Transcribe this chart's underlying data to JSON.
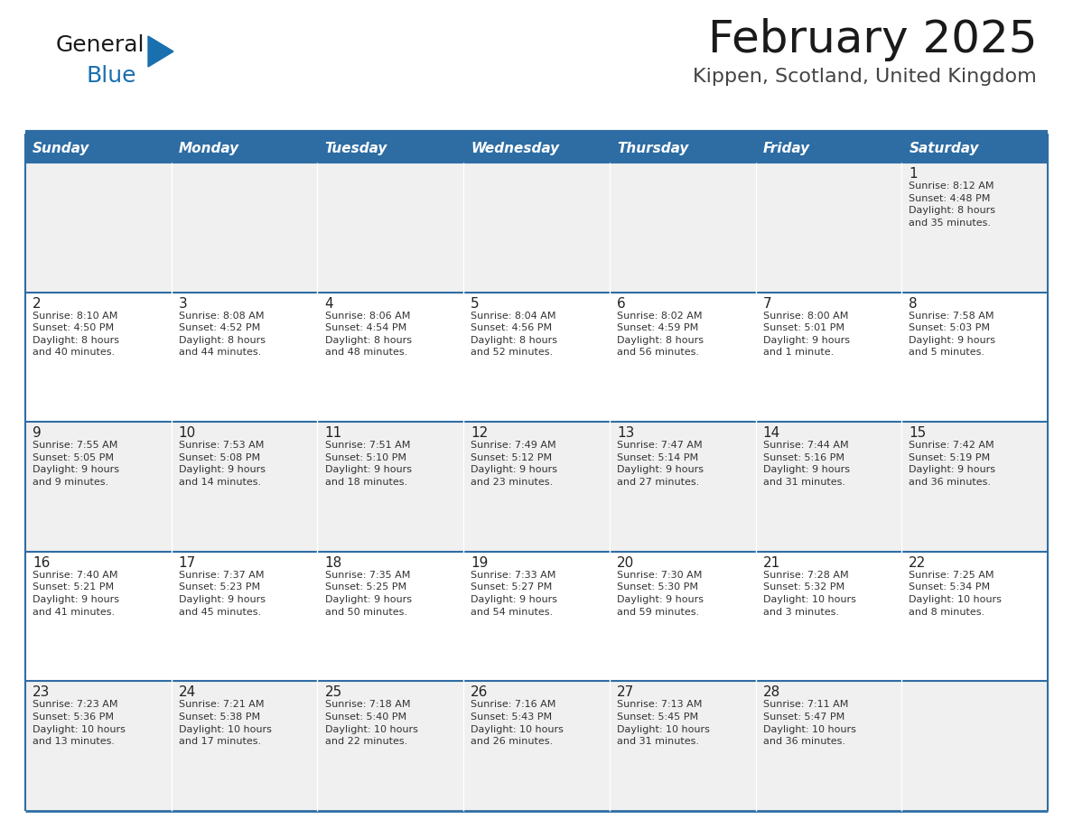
{
  "title": "February 2025",
  "subtitle": "Kippen, Scotland, United Kingdom",
  "header_bg": "#2E6DA4",
  "header_text_color": "#FFFFFF",
  "cell_bg_odd": "#F0F0F0",
  "cell_bg_even": "#FFFFFF",
  "day_names": [
    "Sunday",
    "Monday",
    "Tuesday",
    "Wednesday",
    "Thursday",
    "Friday",
    "Saturday"
  ],
  "weeks": [
    [
      {
        "day": "",
        "info": ""
      },
      {
        "day": "",
        "info": ""
      },
      {
        "day": "",
        "info": ""
      },
      {
        "day": "",
        "info": ""
      },
      {
        "day": "",
        "info": ""
      },
      {
        "day": "",
        "info": ""
      },
      {
        "day": "1",
        "info": "Sunrise: 8:12 AM\nSunset: 4:48 PM\nDaylight: 8 hours\nand 35 minutes."
      }
    ],
    [
      {
        "day": "2",
        "info": "Sunrise: 8:10 AM\nSunset: 4:50 PM\nDaylight: 8 hours\nand 40 minutes."
      },
      {
        "day": "3",
        "info": "Sunrise: 8:08 AM\nSunset: 4:52 PM\nDaylight: 8 hours\nand 44 minutes."
      },
      {
        "day": "4",
        "info": "Sunrise: 8:06 AM\nSunset: 4:54 PM\nDaylight: 8 hours\nand 48 minutes."
      },
      {
        "day": "5",
        "info": "Sunrise: 8:04 AM\nSunset: 4:56 PM\nDaylight: 8 hours\nand 52 minutes."
      },
      {
        "day": "6",
        "info": "Sunrise: 8:02 AM\nSunset: 4:59 PM\nDaylight: 8 hours\nand 56 minutes."
      },
      {
        "day": "7",
        "info": "Sunrise: 8:00 AM\nSunset: 5:01 PM\nDaylight: 9 hours\nand 1 minute."
      },
      {
        "day": "8",
        "info": "Sunrise: 7:58 AM\nSunset: 5:03 PM\nDaylight: 9 hours\nand 5 minutes."
      }
    ],
    [
      {
        "day": "9",
        "info": "Sunrise: 7:55 AM\nSunset: 5:05 PM\nDaylight: 9 hours\nand 9 minutes."
      },
      {
        "day": "10",
        "info": "Sunrise: 7:53 AM\nSunset: 5:08 PM\nDaylight: 9 hours\nand 14 minutes."
      },
      {
        "day": "11",
        "info": "Sunrise: 7:51 AM\nSunset: 5:10 PM\nDaylight: 9 hours\nand 18 minutes."
      },
      {
        "day": "12",
        "info": "Sunrise: 7:49 AM\nSunset: 5:12 PM\nDaylight: 9 hours\nand 23 minutes."
      },
      {
        "day": "13",
        "info": "Sunrise: 7:47 AM\nSunset: 5:14 PM\nDaylight: 9 hours\nand 27 minutes."
      },
      {
        "day": "14",
        "info": "Sunrise: 7:44 AM\nSunset: 5:16 PM\nDaylight: 9 hours\nand 31 minutes."
      },
      {
        "day": "15",
        "info": "Sunrise: 7:42 AM\nSunset: 5:19 PM\nDaylight: 9 hours\nand 36 minutes."
      }
    ],
    [
      {
        "day": "16",
        "info": "Sunrise: 7:40 AM\nSunset: 5:21 PM\nDaylight: 9 hours\nand 41 minutes."
      },
      {
        "day": "17",
        "info": "Sunrise: 7:37 AM\nSunset: 5:23 PM\nDaylight: 9 hours\nand 45 minutes."
      },
      {
        "day": "18",
        "info": "Sunrise: 7:35 AM\nSunset: 5:25 PM\nDaylight: 9 hours\nand 50 minutes."
      },
      {
        "day": "19",
        "info": "Sunrise: 7:33 AM\nSunset: 5:27 PM\nDaylight: 9 hours\nand 54 minutes."
      },
      {
        "day": "20",
        "info": "Sunrise: 7:30 AM\nSunset: 5:30 PM\nDaylight: 9 hours\nand 59 minutes."
      },
      {
        "day": "21",
        "info": "Sunrise: 7:28 AM\nSunset: 5:32 PM\nDaylight: 10 hours\nand 3 minutes."
      },
      {
        "day": "22",
        "info": "Sunrise: 7:25 AM\nSunset: 5:34 PM\nDaylight: 10 hours\nand 8 minutes."
      }
    ],
    [
      {
        "day": "23",
        "info": "Sunrise: 7:23 AM\nSunset: 5:36 PM\nDaylight: 10 hours\nand 13 minutes."
      },
      {
        "day": "24",
        "info": "Sunrise: 7:21 AM\nSunset: 5:38 PM\nDaylight: 10 hours\nand 17 minutes."
      },
      {
        "day": "25",
        "info": "Sunrise: 7:18 AM\nSunset: 5:40 PM\nDaylight: 10 hours\nand 22 minutes."
      },
      {
        "day": "26",
        "info": "Sunrise: 7:16 AM\nSunset: 5:43 PM\nDaylight: 10 hours\nand 26 minutes."
      },
      {
        "day": "27",
        "info": "Sunrise: 7:13 AM\nSunset: 5:45 PM\nDaylight: 10 hours\nand 31 minutes."
      },
      {
        "day": "28",
        "info": "Sunrise: 7:11 AM\nSunset: 5:47 PM\nDaylight: 10 hours\nand 36 minutes."
      },
      {
        "day": "",
        "info": ""
      }
    ]
  ],
  "logo_color_general": "#1a1a1a",
  "logo_color_blue": "#1a6faf",
  "logo_triangle_color": "#1a6faf",
  "title_fontsize": 36,
  "subtitle_fontsize": 16,
  "header_fontsize": 11,
  "day_num_fontsize": 11,
  "info_fontsize": 8
}
